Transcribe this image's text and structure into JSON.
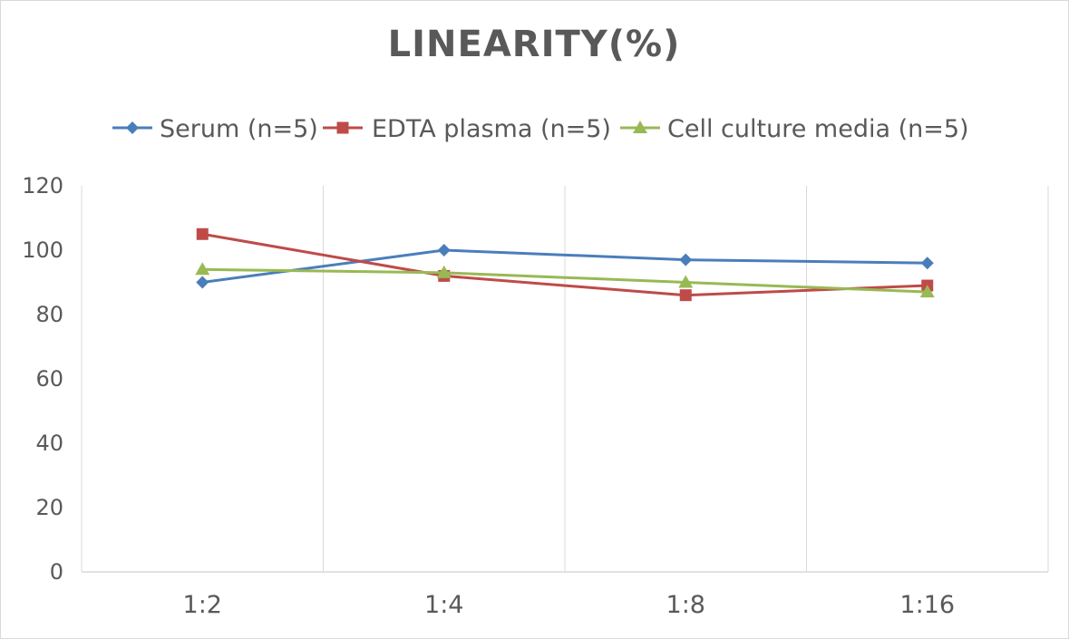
{
  "chart_data": {
    "type": "line",
    "title": "LINEARITY(%)",
    "xlabel": "",
    "ylabel": "",
    "categories": [
      "1:2",
      "1:4",
      "1:8",
      "1:16"
    ],
    "ylim": [
      0,
      120
    ],
    "yticks": [
      0,
      20,
      40,
      60,
      80,
      100,
      120
    ],
    "grid": "vertical",
    "legend_position": "top",
    "series": [
      {
        "name": "Serum (n=5)",
        "color": "#4a7ebb",
        "marker": "diamond",
        "values": [
          90,
          100,
          97,
          96
        ]
      },
      {
        "name": "EDTA plasma (n=5)",
        "color": "#be4b48",
        "marker": "square",
        "values": [
          105,
          92,
          86,
          89
        ]
      },
      {
        "name": "Cell culture media (n=5)",
        "color": "#98b954",
        "marker": "triangle",
        "values": [
          94,
          93,
          90,
          87
        ]
      }
    ]
  }
}
